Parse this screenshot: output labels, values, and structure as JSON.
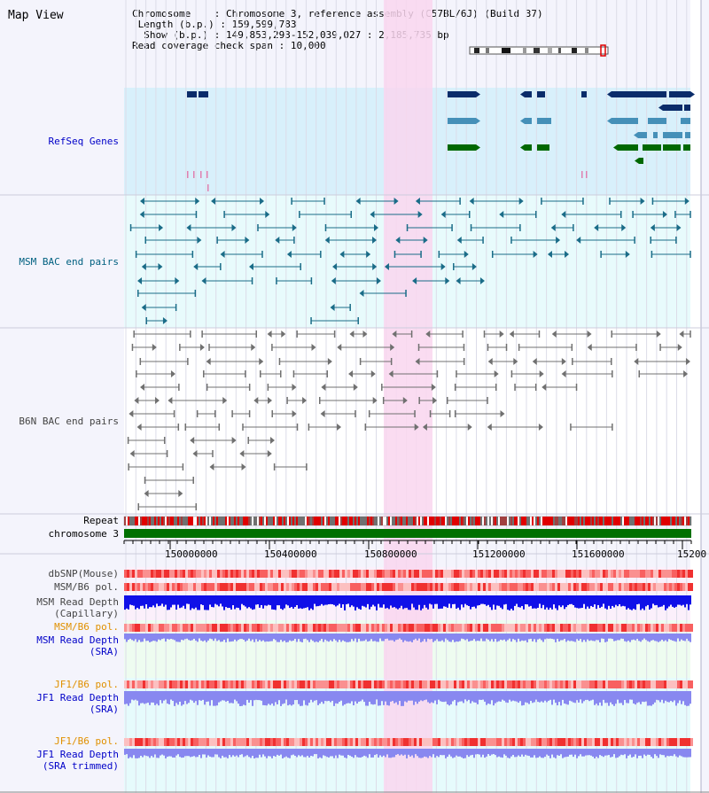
{
  "title": "Map View",
  "info": {
    "chromosome_label": "Chromosome",
    "chromosome_value": "Chromosome 3, reference assembly (C57BL/6J) (Build 37)",
    "length_label": "Length (b.p.)",
    "length_value": "159,599,783",
    "show_label": "Show (b.p.)",
    "show_value": "149,853,293-152,039,027 : 2,185,735 bp",
    "span_label": "Read coverage check span",
    "span_value": "10,000"
  },
  "tracks": {
    "refseq": "RefSeq Genes",
    "msm_bac": "MSM BAC end pairs",
    "b6n_bac": "B6N BAC end pairs",
    "repeat": "Repeat",
    "chromosome": "chromosome 3",
    "dbsnp": "dbSNP(Mouse)",
    "msm_b6_pol": "MSM/B6 pol.",
    "msm_depth_cap_1": "MSM Read Depth",
    "msm_depth_cap_2": "(Capillary)",
    "msm_b6_pol_sra": "MSM/B6 pol.",
    "msm_depth_sra_1": "MSM Read Depth",
    "msm_depth_sra_2": "(SRA)",
    "jf1_b6_pol": "JF1/B6 pol.",
    "jf1_depth_sra_1": "JF1 Read Depth",
    "jf1_depth_sra_2": "(SRA)",
    "jf1_b6_pol_trim": "JF1/B6 pol.",
    "jf1_depth_trim_1": "JF1 Read Depth",
    "jf1_depth_trim_2": "(SRA trimmed)"
  },
  "axis_ticks": [
    "150000000",
    "150400000",
    "150800000",
    "151200000",
    "151600000",
    "15200"
  ],
  "colors": {
    "refseq_bg": "#d8f0fb",
    "bac_bg": "#e8fbfc",
    "highlight": "#f9d6ef",
    "chromosome_bar": "#007000",
    "gene_navy": "#0a2c6a",
    "gene_teal": "#4590b8",
    "gene_green": "#006800",
    "msm_pair": "#1a6c88",
    "b6n_pair": "#707070",
    "depth_blue": "#1010e8",
    "depth_lav": "#8888f0",
    "label_blue": "#0000c8",
    "label_orange": "#e09000",
    "label_teal": "#006080"
  }
}
